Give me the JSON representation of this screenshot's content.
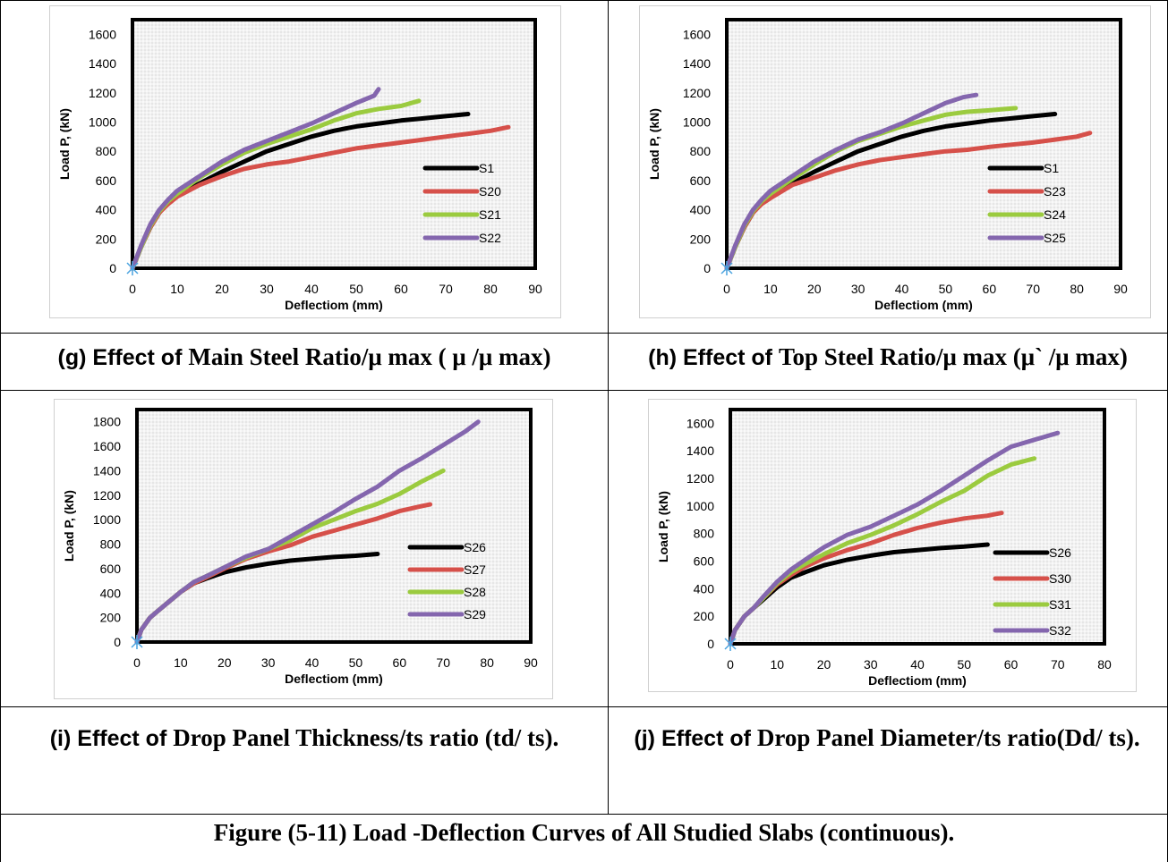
{
  "figure_caption": "Figure (5-11) Load -Deflection Curves of All Studied Slabs (continuous).",
  "captions": {
    "g": {
      "lead": "(g) Effect of ",
      "rest": "Main Steel Ratio/μ max ( μ /μ max)"
    },
    "h": {
      "lead": "(h) Effect of ",
      "rest": "Top Steel Ratio/μ max (μ` /μ max)"
    },
    "i": {
      "lead": "(i) Effect of ",
      "rest": "Drop Panel Thickness/ts ratio (td/ ts)."
    },
    "j": {
      "lead": "(j) Effect of ",
      "rest": "Drop Panel Diameter/ts ratio(Dd/ ts)."
    }
  },
  "colors": {
    "black": "#000000",
    "red": "#D6504A",
    "green": "#9BCB3F",
    "purple": "#8466AE"
  },
  "chart_data": [
    {
      "id": "g",
      "type": "line",
      "xlabel": "Deflectiom (mm)",
      "ylabel": "Load P, (kN)",
      "xlim": [
        0,
        90
      ],
      "ylim": [
        0,
        1700
      ],
      "xticks": [
        0,
        10,
        20,
        30,
        40,
        50,
        60,
        70,
        80,
        90
      ],
      "yticks": [
        0,
        200,
        400,
        600,
        800,
        1000,
        1200,
        1400,
        1600
      ],
      "grid": true,
      "legend": "right",
      "series": [
        {
          "name": "S1",
          "color": "#000000",
          "x": [
            0,
            2,
            4,
            6,
            8,
            10,
            15,
            20,
            25,
            30,
            35,
            40,
            45,
            50,
            55,
            60,
            65,
            70,
            75
          ],
          "y": [
            0,
            150,
            280,
            380,
            450,
            500,
            580,
            660,
            730,
            800,
            850,
            900,
            940,
            970,
            990,
            1010,
            1025,
            1040,
            1055
          ]
        },
        {
          "name": "S20",
          "color": "#D6504A",
          "x": [
            0,
            2,
            4,
            6,
            8,
            10,
            15,
            20,
            25,
            30,
            35,
            40,
            45,
            50,
            55,
            60,
            65,
            70,
            75,
            80,
            84
          ],
          "y": [
            0,
            150,
            280,
            380,
            440,
            490,
            570,
            630,
            680,
            710,
            730,
            760,
            790,
            820,
            840,
            860,
            880,
            900,
            920,
            940,
            965
          ]
        },
        {
          "name": "S21",
          "color": "#9BCB3F",
          "x": [
            0,
            2,
            4,
            6,
            8,
            10,
            15,
            20,
            25,
            30,
            35,
            40,
            45,
            50,
            55,
            60,
            64
          ],
          "y": [
            0,
            150,
            290,
            390,
            460,
            510,
            620,
            710,
            790,
            850,
            900,
            950,
            1010,
            1060,
            1090,
            1110,
            1145
          ]
        },
        {
          "name": "S22",
          "color": "#8466AE",
          "x": [
            0,
            2,
            4,
            6,
            8,
            10,
            15,
            20,
            25,
            30,
            35,
            40,
            45,
            50,
            54,
            55
          ],
          "y": [
            0,
            160,
            300,
            400,
            470,
            530,
            630,
            730,
            810,
            870,
            930,
            990,
            1060,
            1130,
            1180,
            1225
          ]
        }
      ]
    },
    {
      "id": "h",
      "type": "line",
      "xlabel": "Deflectiom (mm)",
      "ylabel": "Load P, (kN)",
      "xlim": [
        0,
        90
      ],
      "ylim": [
        0,
        1700
      ],
      "xticks": [
        0,
        10,
        20,
        30,
        40,
        50,
        60,
        70,
        80,
        90
      ],
      "yticks": [
        0,
        200,
        400,
        600,
        800,
        1000,
        1200,
        1400,
        1600
      ],
      "grid": true,
      "legend": "right",
      "series": [
        {
          "name": "S1",
          "color": "#000000",
          "x": [
            0,
            2,
            4,
            6,
            8,
            10,
            15,
            20,
            25,
            30,
            35,
            40,
            45,
            50,
            55,
            60,
            65,
            70,
            75
          ],
          "y": [
            0,
            150,
            280,
            380,
            450,
            500,
            580,
            660,
            730,
            800,
            850,
            900,
            940,
            970,
            990,
            1010,
            1025,
            1040,
            1055
          ]
        },
        {
          "name": "S23",
          "color": "#D6504A",
          "x": [
            0,
            2,
            4,
            6,
            8,
            10,
            15,
            20,
            25,
            30,
            35,
            40,
            45,
            50,
            55,
            60,
            65,
            70,
            75,
            80,
            83
          ],
          "y": [
            0,
            150,
            280,
            380,
            440,
            480,
            570,
            620,
            670,
            710,
            740,
            760,
            780,
            800,
            810,
            830,
            845,
            860,
            880,
            900,
            925
          ]
        },
        {
          "name": "S24",
          "color": "#9BCB3F",
          "x": [
            0,
            2,
            4,
            6,
            8,
            10,
            15,
            20,
            25,
            30,
            35,
            40,
            45,
            50,
            55,
            60,
            66
          ],
          "y": [
            0,
            150,
            290,
            390,
            460,
            510,
            610,
            710,
            800,
            870,
            920,
            970,
            1010,
            1050,
            1070,
            1080,
            1095
          ]
        },
        {
          "name": "S25",
          "color": "#8466AE",
          "x": [
            0,
            2,
            4,
            6,
            8,
            10,
            15,
            20,
            25,
            30,
            35,
            40,
            45,
            50,
            54,
            57
          ],
          "y": [
            0,
            160,
            300,
            400,
            470,
            530,
            630,
            730,
            810,
            880,
            930,
            990,
            1060,
            1130,
            1170,
            1185
          ]
        }
      ]
    },
    {
      "id": "i",
      "type": "line",
      "xlabel": "Deflectiom (mm)",
      "ylabel": "Load P, (kN)",
      "xlim": [
        0,
        90
      ],
      "ylim": [
        0,
        1900
      ],
      "xticks": [
        0,
        10,
        20,
        30,
        40,
        50,
        60,
        70,
        80,
        90
      ],
      "yticks": [
        0,
        200,
        400,
        600,
        800,
        1000,
        1200,
        1400,
        1600,
        1800
      ],
      "grid": true,
      "legend": "right",
      "series": [
        {
          "name": "S26",
          "color": "#000000",
          "x": [
            0,
            1,
            3,
            5,
            7,
            10,
            13,
            16,
            20,
            25,
            30,
            35,
            40,
            45,
            50,
            55
          ],
          "y": [
            0,
            100,
            200,
            260,
            320,
            410,
            480,
            520,
            570,
            610,
            640,
            665,
            680,
            695,
            705,
            720
          ]
        },
        {
          "name": "S27",
          "color": "#D6504A",
          "x": [
            0,
            1,
            3,
            5,
            7,
            10,
            13,
            16,
            20,
            25,
            30,
            35,
            40,
            45,
            50,
            55,
            60,
            65,
            67
          ],
          "y": [
            0,
            100,
            200,
            260,
            320,
            410,
            480,
            530,
            600,
            680,
            740,
            790,
            860,
            910,
            960,
            1010,
            1070,
            1110,
            1125
          ]
        },
        {
          "name": "S28",
          "color": "#9BCB3F",
          "x": [
            0,
            1,
            3,
            5,
            7,
            10,
            13,
            16,
            20,
            25,
            30,
            35,
            40,
            45,
            50,
            55,
            60,
            65,
            70
          ],
          "y": [
            0,
            100,
            200,
            260,
            320,
            410,
            490,
            540,
            610,
            690,
            760,
            830,
            930,
            1000,
            1070,
            1130,
            1210,
            1310,
            1400
          ]
        },
        {
          "name": "S29",
          "color": "#8466AE",
          "x": [
            0,
            1,
            3,
            5,
            7,
            10,
            13,
            16,
            20,
            25,
            30,
            35,
            40,
            45,
            50,
            55,
            60,
            65,
            70,
            75,
            78
          ],
          "y": [
            0,
            100,
            200,
            260,
            320,
            410,
            490,
            540,
            610,
            700,
            760,
            860,
            960,
            1060,
            1170,
            1270,
            1400,
            1500,
            1610,
            1720,
            1800
          ]
        }
      ]
    },
    {
      "id": "j",
      "type": "line",
      "xlabel": "Deflectiom (mm)",
      "ylabel": "Load P, (kN)",
      "xlim": [
        0,
        80
      ],
      "ylim": [
        0,
        1700
      ],
      "xticks": [
        0,
        10,
        20,
        30,
        40,
        50,
        60,
        70,
        80
      ],
      "yticks": [
        0,
        200,
        400,
        600,
        800,
        1000,
        1200,
        1400,
        1600
      ],
      "grid": true,
      "legend": "right",
      "series": [
        {
          "name": "S26",
          "color": "#000000",
          "x": [
            0,
            1,
            3,
            5,
            7,
            10,
            13,
            16,
            20,
            25,
            30,
            35,
            40,
            45,
            50,
            55
          ],
          "y": [
            0,
            100,
            200,
            260,
            320,
            410,
            480,
            520,
            570,
            610,
            640,
            665,
            680,
            695,
            705,
            720
          ]
        },
        {
          "name": "S30",
          "color": "#D6504A",
          "x": [
            0,
            1,
            3,
            5,
            7,
            10,
            13,
            16,
            20,
            25,
            30,
            35,
            40,
            45,
            50,
            55,
            58
          ],
          "y": [
            0,
            100,
            200,
            260,
            330,
            430,
            500,
            560,
            620,
            680,
            730,
            790,
            840,
            880,
            910,
            930,
            950
          ]
        },
        {
          "name": "S31",
          "color": "#9BCB3F",
          "x": [
            0,
            1,
            3,
            5,
            7,
            10,
            13,
            16,
            20,
            25,
            30,
            35,
            40,
            45,
            50,
            55,
            60,
            65
          ],
          "y": [
            0,
            100,
            200,
            260,
            330,
            440,
            520,
            580,
            650,
            730,
            790,
            860,
            940,
            1030,
            1110,
            1220,
            1300,
            1345
          ]
        },
        {
          "name": "S32",
          "color": "#8466AE",
          "x": [
            0,
            1,
            3,
            5,
            7,
            10,
            13,
            16,
            20,
            25,
            30,
            35,
            40,
            45,
            50,
            55,
            60,
            65,
            70
          ],
          "y": [
            0,
            100,
            200,
            260,
            340,
            450,
            540,
            610,
            700,
            790,
            850,
            930,
            1010,
            1110,
            1220,
            1330,
            1430,
            1480,
            1530
          ]
        }
      ]
    }
  ]
}
